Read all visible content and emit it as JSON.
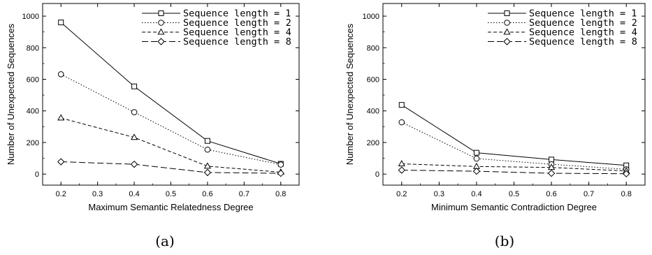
{
  "chart_data": [
    {
      "type": "line",
      "caption": "(a)",
      "xlabel": "Maximum Semantic Relatedness Degree",
      "ylabel": "Number of Unexpected Sequences",
      "xlim": [
        0.15,
        0.85
      ],
      "ylim": [
        -70,
        1080
      ],
      "xticks": [
        "0.2",
        "0.3",
        "0.4",
        "0.5",
        "0.6",
        "0.7",
        "0.8"
      ],
      "yticks": [
        "0",
        "200",
        "400",
        "600",
        "800",
        "1000"
      ],
      "x": [
        0.2,
        0.4,
        0.6,
        0.8
      ],
      "legend_position": "top-right",
      "series": [
        {
          "name": "Sequence length = 1",
          "marker": "square",
          "dash": "solid",
          "values": [
            960,
            555,
            210,
            65
          ]
        },
        {
          "name": "2",
          "marker": "circle",
          "dash": "dotted",
          "values": [
            632,
            392,
            155,
            60
          ]
        },
        {
          "name": "4",
          "marker": "triangle",
          "dash": "dashed",
          "values": [
            355,
            232,
            50,
            12
          ]
        },
        {
          "name": "8",
          "marker": "diamond",
          "dash": "longdash",
          "values": [
            78,
            62,
            10,
            5
          ]
        }
      ]
    },
    {
      "type": "line",
      "caption": "(b)",
      "xlabel": "Minimum Semantic Contradiction Degree",
      "ylabel": "Number of Unexpected Sequences",
      "xlim": [
        0.15,
        0.85
      ],
      "ylim": [
        -70,
        1080
      ],
      "xticks": [
        "0.2",
        "0.3",
        "0.4",
        "0.5",
        "0.6",
        "0.7",
        "0.8"
      ],
      "yticks": [
        "0",
        "200",
        "400",
        "600",
        "800",
        "1000"
      ],
      "x": [
        0.2,
        0.4,
        0.6,
        0.8
      ],
      "legend_position": "top-right",
      "series": [
        {
          "name": "Sequence length = 1",
          "marker": "square",
          "dash": "solid",
          "values": [
            438,
            135,
            92,
            55
          ]
        },
        {
          "name": "2",
          "marker": "circle",
          "dash": "dotted",
          "values": [
            328,
            98,
            62,
            30
          ]
        },
        {
          "name": "4",
          "marker": "triangle",
          "dash": "dashed",
          "values": [
            65,
            48,
            42,
            20
          ]
        },
        {
          "name": "8",
          "marker": "diamond",
          "dash": "longdash",
          "values": [
            25,
            18,
            5,
            2
          ]
        }
      ]
    }
  ]
}
